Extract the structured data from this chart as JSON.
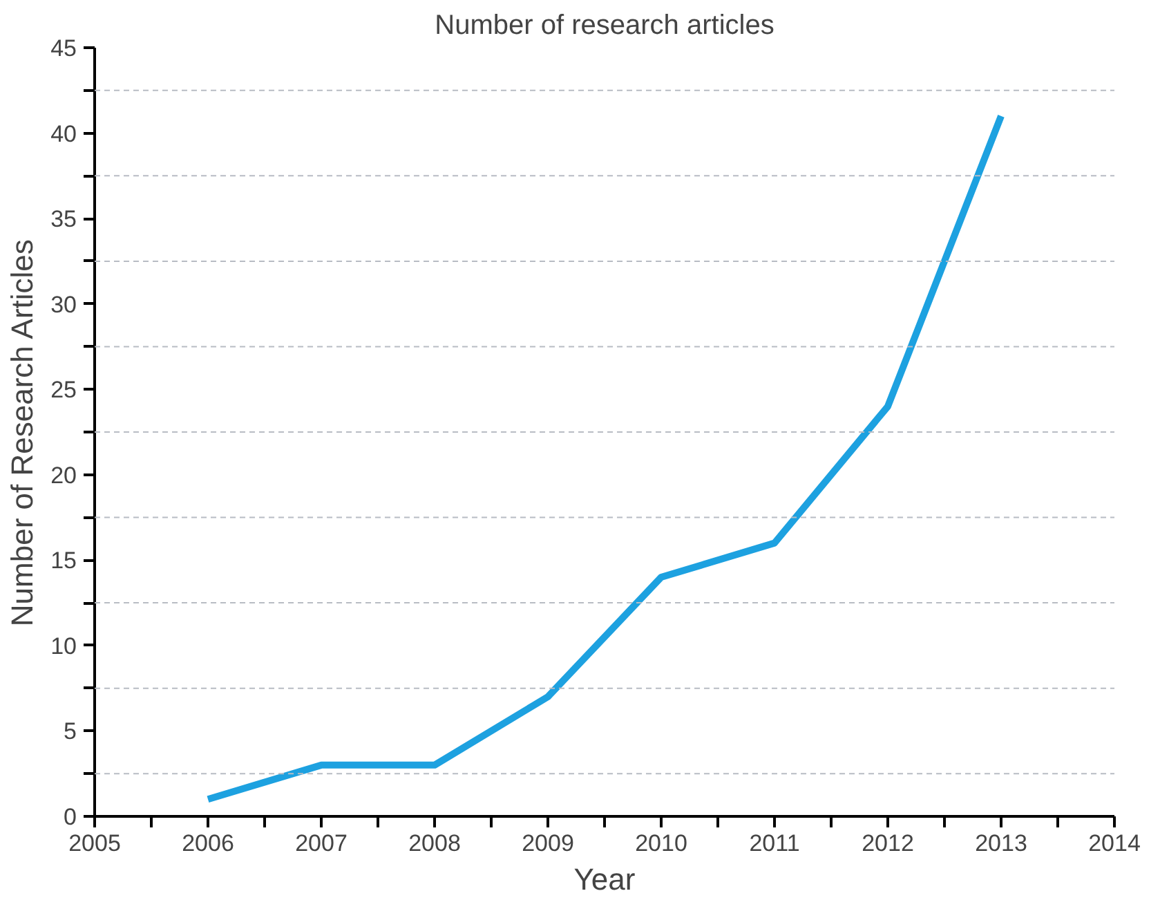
{
  "chart_data": {
    "type": "line",
    "title": "Number of research articles",
    "xlabel": "Year",
    "ylabel": "Number of Research Articles",
    "x": [
      2006,
      2007,
      2008,
      2009,
      2010,
      2011,
      2012,
      2013
    ],
    "series": [
      {
        "color": "#1da1e0",
        "values": [
          1,
          3,
          3,
          7,
          14,
          16,
          24,
          41
        ]
      }
    ],
    "xlim": [
      2005,
      2014
    ],
    "xticks": [
      2005,
      {
        "value": 2005.5,
        "label": null
      },
      2006,
      {
        "value": 2006.5,
        "label": null
      },
      2007,
      {
        "value": 2007.5,
        "label": null
      },
      2008,
      {
        "value": 2008.5,
        "label": null
      },
      2009,
      {
        "value": 2009.5,
        "label": null
      },
      2010,
      {
        "value": 2010.5,
        "label": null
      },
      2011,
      {
        "value": 2011.5,
        "label": null
      },
      2012,
      {
        "value": 2012.5,
        "label": null
      },
      2013,
      {
        "value": 2013.5,
        "label": null
      },
      2014
    ],
    "ylim": [
      0,
      45
    ],
    "yticks": [
      0,
      {
        "value": 2.5,
        "label": null
      },
      5,
      {
        "value": 7.5,
        "label": null
      },
      10,
      {
        "value": 12.5,
        "label": null
      },
      15,
      {
        "value": 17.5,
        "label": null
      },
      20,
      {
        "value": 22.5,
        "label": null
      },
      25,
      {
        "value": 27.5,
        "label": null
      },
      30,
      {
        "value": 32.5,
        "label": null
      },
      35,
      {
        "value": 37.5,
        "label": null
      },
      40,
      {
        "value": 42.5,
        "label": null
      },
      45
    ],
    "grid": "y",
    "line_style": "solid"
  }
}
